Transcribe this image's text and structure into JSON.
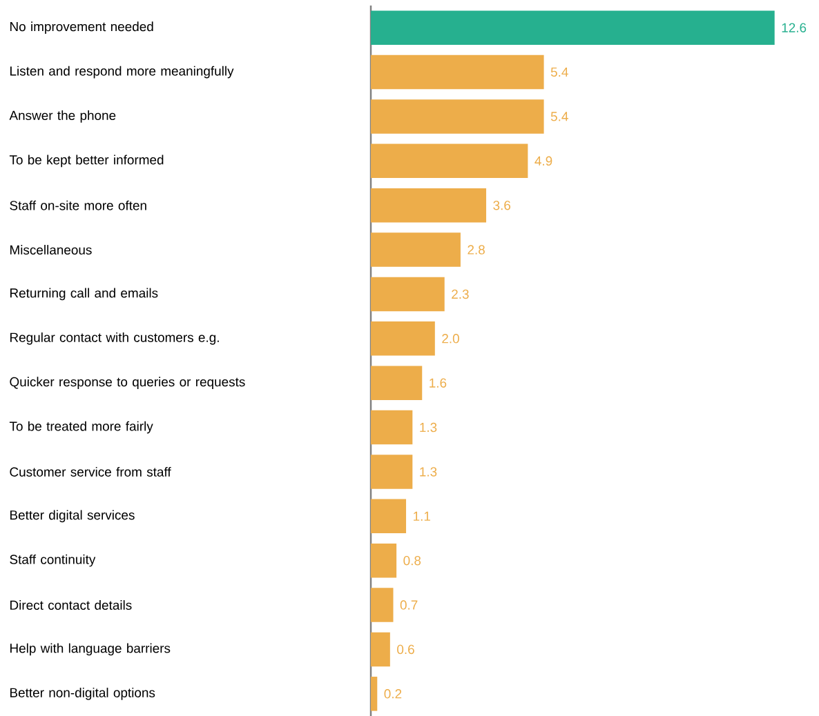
{
  "chart_data": {
    "type": "bar",
    "orientation": "horizontal",
    "categories": [
      "No improvement needed",
      "Listen and respond more meaningfully",
      "Answer the phone",
      "To be kept better informed",
      "Staff on-site more often",
      "Miscellaneous",
      "Returning call and emails",
      "Regular contact with customers e.g.",
      "Quicker response to queries or requests",
      "To be treated more fairly",
      "Customer service from staff",
      "Better digital services",
      "Staff continuity",
      "Direct contact details",
      "Help with language barriers",
      "Better non-digital options"
    ],
    "values": [
      12.6,
      5.4,
      5.4,
      4.9,
      3.6,
      2.8,
      2.3,
      2.0,
      1.6,
      1.3,
      1.3,
      1.1,
      0.8,
      0.7,
      0.6,
      0.2
    ],
    "colors": [
      "#26b08f",
      "#edad4a",
      "#edad4a",
      "#edad4a",
      "#edad4a",
      "#edad4a",
      "#edad4a",
      "#edad4a",
      "#edad4a",
      "#edad4a",
      "#edad4a",
      "#edad4a",
      "#edad4a",
      "#edad4a",
      "#edad4a",
      "#edad4a"
    ],
    "value_labels": [
      "12.6",
      "5.4",
      "5.4",
      "4.9",
      "3.6",
      "2.8",
      "2.3",
      "2.0",
      "1.6",
      "1.3",
      "1.3",
      "1.1",
      "0.8",
      "0.7",
      "0.6",
      "0.2"
    ],
    "tick_labels": "y"
  }
}
